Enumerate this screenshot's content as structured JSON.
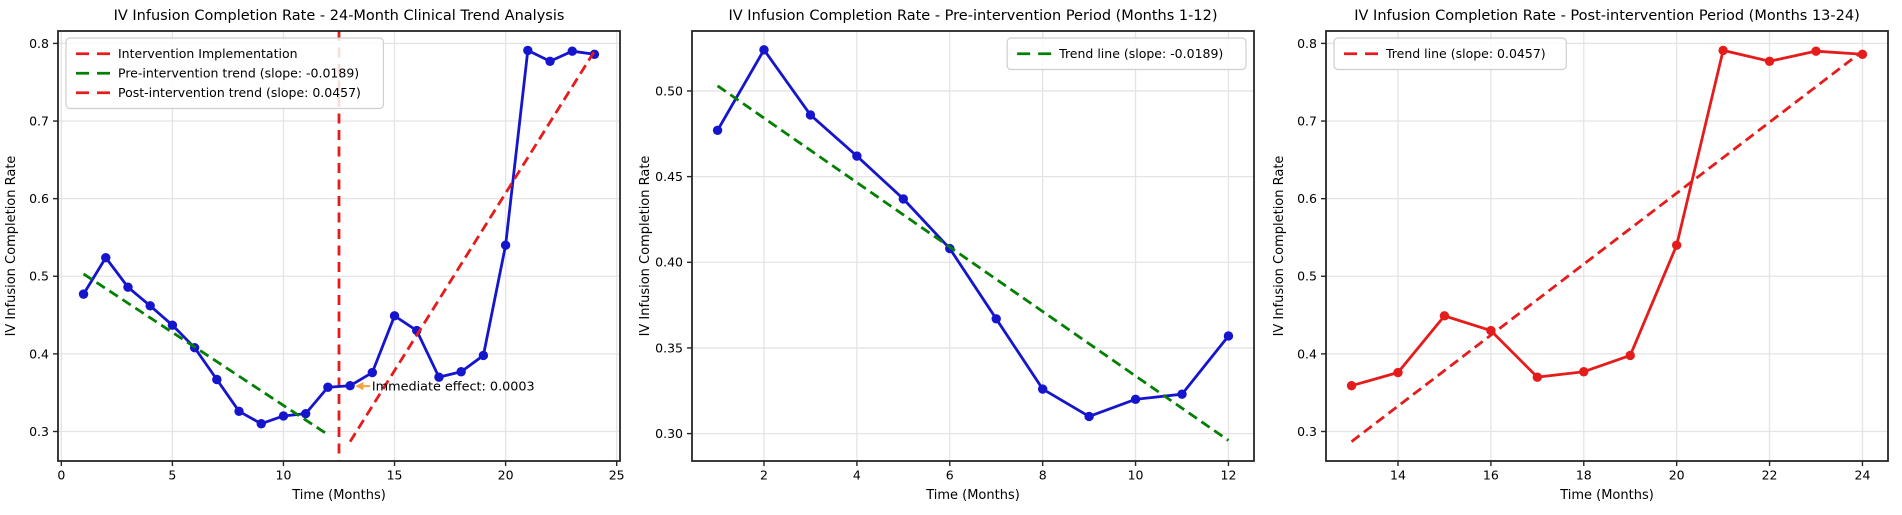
{
  "figure_title": "IV Infusion Completion Rate interrupted time-series figure",
  "colors": {
    "series_blue": "#1515cd",
    "series_red": "#e51c1c",
    "trend_green": "#038003",
    "trend_red": "#e51c1c",
    "intervention_red": "#e51c1c",
    "annotation_orange": "#f5a142",
    "grid": "#e4e4e4",
    "spine": "#262626",
    "text": "#000000",
    "legend_border": "#cfcfcf",
    "background": "#ffffff"
  },
  "chart_data": [
    {
      "id": "overall",
      "type": "line",
      "title": "IV Infusion Completion Rate - 24-Month Clinical Trend Analysis",
      "xlabel": "Time (Months)",
      "ylabel": "IV Infusion Completion Rate",
      "xlim": [
        -0.15,
        25.15
      ],
      "ylim": [
        0.262,
        0.816
      ],
      "xticks": [
        0,
        5,
        10,
        15,
        20,
        25
      ],
      "xtick_labels": [
        "0",
        "5",
        "10",
        "15",
        "20",
        "25"
      ],
      "yticks": [
        0.3,
        0.4,
        0.5,
        0.6,
        0.7,
        0.8
      ],
      "ytick_labels": [
        "0.3",
        "0.4",
        "0.5",
        "0.6",
        "0.7",
        "0.8"
      ],
      "grid": true,
      "series": [
        {
          "name": "completion-rate",
          "color": "#1515cd",
          "markers": true,
          "x": [
            1,
            2,
            3,
            4,
            5,
            6,
            7,
            8,
            9,
            10,
            11,
            12,
            13,
            14,
            15,
            16,
            17,
            18,
            19,
            20,
            21,
            22,
            23,
            24
          ],
          "y": [
            0.477,
            0.524,
            0.486,
            0.462,
            0.437,
            0.408,
            0.367,
            0.326,
            0.31,
            0.32,
            0.323,
            0.357,
            0.359,
            0.376,
            0.449,
            0.43,
            0.37,
            0.377,
            0.398,
            0.54,
            0.791,
            0.777,
            0.79,
            0.786
          ]
        }
      ],
      "trends": [
        {
          "name": "pre-intervention-trend",
          "slope": -0.0189,
          "color": "#038003",
          "x1": 1,
          "y1": 0.503,
          "x2": 12,
          "y2": 0.296
        },
        {
          "name": "post-intervention-trend",
          "slope": 0.0457,
          "color": "#e51c1c",
          "x1": 13,
          "y1": 0.287,
          "x2": 24,
          "y2": 0.79
        }
      ],
      "vline": {
        "name": "intervention-line",
        "x": 12.5,
        "color": "#e51c1c"
      },
      "legend": {
        "loc": "upper-left",
        "entries": [
          {
            "label": "Intervention Implementation",
            "color": "#e51c1c",
            "dashed": true
          },
          {
            "label": "Pre-intervention trend (slope: -0.0189)",
            "color": "#038003",
            "dashed": true
          },
          {
            "label": "Post-intervention trend (slope: 0.0457)",
            "color": "#e51c1c",
            "dashed": true
          }
        ]
      },
      "annotation": {
        "text": "Immediate effect: 0.0003",
        "value": 0.0003,
        "text_x": 13.98,
        "text_y": 0.3585,
        "arrow_tail_x": 13.9,
        "arrow_tip_x": 13.24,
        "arrow_y": 0.3585,
        "arrow_color": "#f5a142"
      }
    },
    {
      "id": "pre-intervention",
      "type": "line",
      "title": "IV Infusion Completion Rate - Pre-intervention Period (Months 1-12)",
      "xlabel": "Time (Months)",
      "ylabel": "IV Infusion Completion Rate",
      "xlim": [
        0.45,
        12.55
      ],
      "ylim": [
        0.284,
        0.535
      ],
      "xticks": [
        2,
        4,
        6,
        8,
        10,
        12
      ],
      "xtick_labels": [
        "2",
        "4",
        "6",
        "8",
        "10",
        "12"
      ],
      "yticks": [
        0.3,
        0.35,
        0.4,
        0.45,
        0.5
      ],
      "ytick_labels": [
        "0.30",
        "0.35",
        "0.40",
        "0.45",
        "0.50"
      ],
      "grid": true,
      "series": [
        {
          "name": "completion-rate-pre",
          "color": "#1515cd",
          "markers": true,
          "x": [
            1,
            2,
            3,
            4,
            5,
            6,
            7,
            8,
            9,
            10,
            11,
            12
          ],
          "y": [
            0.477,
            0.524,
            0.486,
            0.462,
            0.437,
            0.408,
            0.367,
            0.326,
            0.31,
            0.32,
            0.323,
            0.357
          ]
        }
      ],
      "trends": [
        {
          "name": "pre-trend-line",
          "slope": -0.0189,
          "color": "#038003",
          "x1": 1,
          "y1": 0.503,
          "x2": 12,
          "y2": 0.296
        }
      ],
      "vline": null,
      "legend": {
        "loc": "upper-right",
        "entries": [
          {
            "label": "Trend line (slope: -0.0189)",
            "color": "#038003",
            "dashed": true
          }
        ]
      },
      "annotation": null
    },
    {
      "id": "post-intervention",
      "type": "line",
      "title": "IV Infusion Completion Rate - Post-intervention Period (Months 13-24)",
      "xlabel": "Time (Months)",
      "ylabel": "IV Infusion Completion Rate",
      "xlim": [
        12.45,
        24.55
      ],
      "ylim": [
        0.262,
        0.816
      ],
      "xticks": [
        14,
        16,
        18,
        20,
        22,
        24
      ],
      "xtick_labels": [
        "14",
        "16",
        "18",
        "20",
        "22",
        "24"
      ],
      "yticks": [
        0.3,
        0.4,
        0.5,
        0.6,
        0.7,
        0.8
      ],
      "ytick_labels": [
        "0.3",
        "0.4",
        "0.5",
        "0.6",
        "0.7",
        "0.8"
      ],
      "grid": true,
      "series": [
        {
          "name": "completion-rate-post",
          "color": "#e51c1c",
          "markers": true,
          "x": [
            13,
            14,
            15,
            16,
            17,
            18,
            19,
            20,
            21,
            22,
            23,
            24
          ],
          "y": [
            0.359,
            0.376,
            0.449,
            0.43,
            0.37,
            0.377,
            0.398,
            0.54,
            0.791,
            0.777,
            0.79,
            0.786
          ]
        }
      ],
      "trends": [
        {
          "name": "post-trend-line",
          "slope": 0.0457,
          "color": "#e51c1c",
          "x1": 13,
          "y1": 0.287,
          "x2": 24,
          "y2": 0.79
        }
      ],
      "vline": null,
      "legend": {
        "loc": "upper-left",
        "entries": [
          {
            "label": "Trend line (slope: 0.0457)",
            "color": "#e51c1c",
            "dashed": true
          }
        ]
      },
      "annotation": null
    }
  ]
}
